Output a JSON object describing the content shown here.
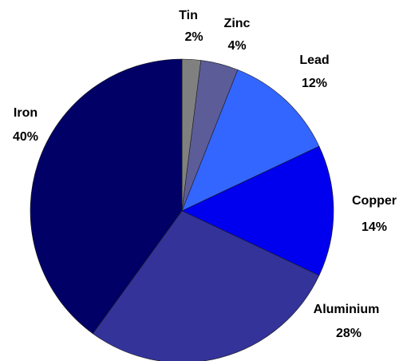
{
  "chart_data": {
    "type": "pie",
    "categories": [
      "Tin",
      "Zinc",
      "Lead",
      "Copper",
      "Aluminium",
      "Iron"
    ],
    "values": [
      2,
      4,
      12,
      14,
      28,
      40
    ],
    "value_labels": [
      "2%",
      "4%",
      "12%",
      "14%",
      "28%",
      "40%"
    ],
    "colors": [
      "#808080",
      "#5c5c99",
      "#3366ff",
      "#0000ee",
      "#333399",
      "#000066"
    ]
  }
}
